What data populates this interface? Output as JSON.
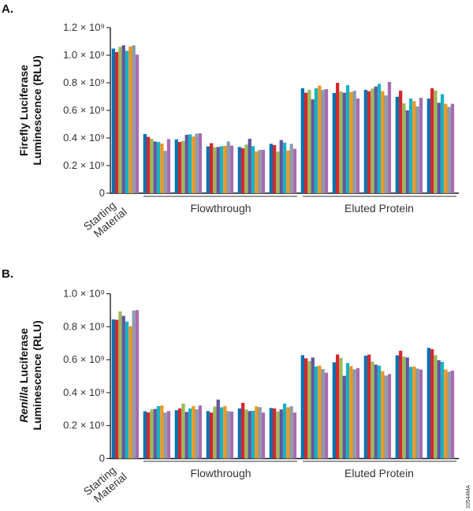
{
  "colors": [
    "#0072b0",
    "#d7262e",
    "#9bbb59",
    "#6454a0",
    "#17b3c2",
    "#ec9726",
    "#8a9daa",
    "#a86bb0"
  ],
  "figure_code": "10544MA",
  "chart_data": [
    {
      "type": "bar",
      "panel_label": "A.",
      "ylabel_line1_italic": "",
      "ylabel_line1": "Firefly Luciferase",
      "ylabel_line2": "Luminescence (RLU)",
      "ylim": [
        0,
        1200000000.0
      ],
      "yticks": [
        0,
        200000000.0,
        400000000.0,
        600000000.0,
        800000000.0,
        1000000000.0,
        1200000000.0
      ],
      "ytick_labels": [
        "0",
        "0.2 × 10⁹",
        "0.4 × 10⁹",
        "0.6 × 10⁹",
        "0.8 × 10⁹",
        "1.0 × 10⁹",
        "1.2 × 10⁹"
      ],
      "category_groups": [
        {
          "label_line1": "Starting",
          "label_line2": "Material"
        },
        {
          "label": "Flowthrough"
        },
        {
          "label": "Eluted Protein"
        }
      ],
      "groups": [
        {
          "category": "Starting Material",
          "values": [
            1048000000.0,
            1023000000.0,
            1061000000.0,
            1072000000.0,
            1032000000.0,
            1063000000.0,
            1072000000.0,
            1004000000.0
          ]
        },
        {
          "category": "Flowthrough",
          "values": [
            429000000.0,
            408000000.0,
            394000000.0,
            375000000.0,
            371000000.0,
            360000000.0,
            307000000.0,
            392000000.0
          ]
        },
        {
          "category": "Flowthrough",
          "values": [
            390000000.0,
            371000000.0,
            379000000.0,
            423000000.0,
            427000000.0,
            411000000.0,
            432000000.0,
            434000000.0
          ]
        },
        {
          "category": "Flowthrough",
          "values": [
            339000000.0,
            362000000.0,
            333000000.0,
            335000000.0,
            341000000.0,
            343000000.0,
            375000000.0,
            345000000.0
          ]
        },
        {
          "category": "Flowthrough",
          "values": [
            335000000.0,
            326000000.0,
            352000000.0,
            394000000.0,
            341000000.0,
            303000000.0,
            314000000.0,
            314000000.0
          ]
        },
        {
          "category": "Flowthrough",
          "values": [
            358000000.0,
            349000000.0,
            301000000.0,
            385000000.0,
            366000000.0,
            309000000.0,
            358000000.0,
            322000000.0
          ]
        },
        {
          "category": "Eluted Protein",
          "values": [
            760000000.0,
            728000000.0,
            749000000.0,
            680000000.0,
            760000000.0,
            779000000.0,
            749000000.0,
            754000000.0
          ]
        },
        {
          "category": "Eluted Protein",
          "values": [
            726000000.0,
            800000000.0,
            737000000.0,
            728000000.0,
            783000000.0,
            733000000.0,
            743000000.0,
            686000000.0
          ]
        },
        {
          "category": "Eluted Protein",
          "values": [
            749000000.0,
            739000000.0,
            758000000.0,
            773000000.0,
            792000000.0,
            739000000.0,
            709000000.0,
            806000000.0
          ]
        },
        {
          "category": "Eluted Protein",
          "values": [
            699000000.0,
            743000000.0,
            651000000.0,
            600000000.0,
            686000000.0,
            667000000.0,
            629000000.0,
            691000000.0
          ]
        },
        {
          "category": "Eluted Protein",
          "values": [
            686000000.0,
            760000000.0,
            743000000.0,
            655000000.0,
            718000000.0,
            648000000.0,
            625000000.0,
            648000000.0
          ]
        }
      ]
    },
    {
      "type": "bar",
      "panel_label": "B.",
      "ylabel_line1_italic": "Renilla",
      "ylabel_line1": " Luciferase",
      "ylabel_line2": "Luminescence (RLU)",
      "ylim": [
        0,
        1000000000.0
      ],
      "yticks": [
        0,
        200000000.0,
        400000000.0,
        600000000.0,
        800000000.0,
        1000000000.0
      ],
      "ytick_labels": [
        "0",
        "0.2 × 10⁹",
        "0.4 × 10⁹",
        "0.6 × 10⁹",
        "0.8 × 10⁹",
        "1.0 × 10⁹"
      ],
      "category_groups": [
        {
          "label_line1": "Starting",
          "label_line2": "Material"
        },
        {
          "label": "Flowthrough"
        },
        {
          "label": "Eluted Protein"
        }
      ],
      "groups": [
        {
          "category": "Starting Material",
          "values": [
            844000000.0,
            842000000.0,
            893000000.0,
            866000000.0,
            831000000.0,
            803000000.0,
            898000000.0,
            901000000.0
          ]
        },
        {
          "category": "Flowthrough",
          "values": [
            287000000.0,
            280000000.0,
            298000000.0,
            301000000.0,
            318000000.0,
            322000000.0,
            279000000.0,
            288000000.0
          ]
        },
        {
          "category": "Flowthrough",
          "values": [
            293000000.0,
            304000000.0,
            333000000.0,
            283000000.0,
            304000000.0,
            318000000.0,
            299000000.0,
            322000000.0
          ]
        },
        {
          "category": "Flowthrough",
          "values": [
            288000000.0,
            279000000.0,
            315000000.0,
            358000000.0,
            311000000.0,
            318000000.0,
            288000000.0,
            285000000.0
          ]
        },
        {
          "category": "Flowthrough",
          "values": [
            304000000.0,
            338000000.0,
            298000000.0,
            288000000.0,
            290000000.0,
            317000000.0,
            312000000.0,
            279000000.0
          ]
        },
        {
          "category": "Flowthrough",
          "values": [
            307000000.0,
            304000000.0,
            285000000.0,
            298000000.0,
            334000000.0,
            311000000.0,
            317000000.0,
            279000000.0
          ]
        },
        {
          "category": "Eluted Protein",
          "values": [
            627000000.0,
            608000000.0,
            592000000.0,
            613000000.0,
            559000000.0,
            564000000.0,
            543000000.0,
            521000000.0
          ]
        },
        {
          "category": "Eluted Protein",
          "values": [
            584000000.0,
            631000000.0,
            611000000.0,
            502000000.0,
            580000000.0,
            561000000.0,
            541000000.0,
            549000000.0
          ]
        },
        {
          "category": "Eluted Protein",
          "values": [
            624000000.0,
            631000000.0,
            588000000.0,
            570000000.0,
            564000000.0,
            530000000.0,
            503000000.0,
            513000000.0
          ]
        },
        {
          "category": "Eluted Protein",
          "values": [
            626000000.0,
            654000000.0,
            619000000.0,
            613000000.0,
            556000000.0,
            559000000.0,
            546000000.0,
            540000000.0
          ]
        },
        {
          "category": "Eluted Protein",
          "values": [
            672000000.0,
            664000000.0,
            627000000.0,
            597000000.0,
            586000000.0,
            540000000.0,
            527000000.0,
            533000000.0
          ]
        }
      ]
    }
  ]
}
